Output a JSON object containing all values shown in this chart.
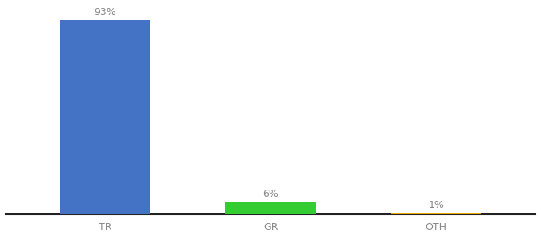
{
  "categories": [
    "TR",
    "GR",
    "OTH"
  ],
  "values": [
    93,
    6,
    1
  ],
  "bar_colors": [
    "#4472c4",
    "#33cc33",
    "#f0a800"
  ],
  "labels": [
    "93%",
    "6%",
    "1%"
  ],
  "ylim": [
    0,
    100
  ],
  "background_color": "#ffffff",
  "label_fontsize": 9,
  "tick_fontsize": 9,
  "label_color": "#888888",
  "tick_color": "#888888",
  "spine_color": "#222222",
  "bar_width": 0.55
}
